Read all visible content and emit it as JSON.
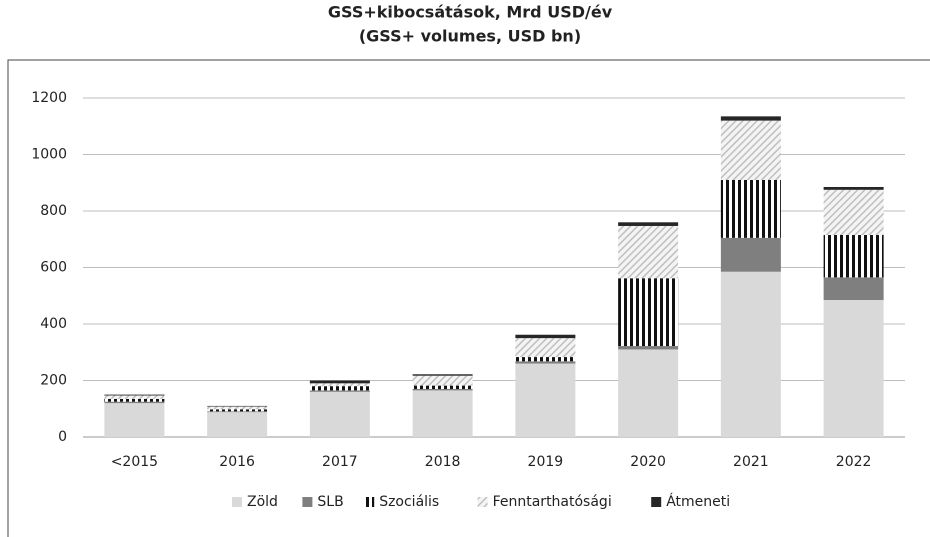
{
  "chart_data": {
    "type": "stacked-bar",
    "title": "GSS+kibocsátások, Mrd USD/év",
    "subtitle": "(GSS+ volumes, USD bn)",
    "categories": [
      "<2015",
      "2016",
      "2017",
      "2018",
      "2019",
      "2020",
      "2021",
      "2022"
    ],
    "series": [
      {
        "name": "Zöld",
        "color": "#d9d9d9",
        "pattern": "solid",
        "values": [
          120,
          88,
          160,
          165,
          260,
          310,
          585,
          485
        ]
      },
      {
        "name": "SLB",
        "color": "#7f7f7f",
        "pattern": "solid",
        "values": [
          5,
          3,
          5,
          5,
          8,
          12,
          120,
          80
        ]
      },
      {
        "name": "Szociális",
        "color": "#111111",
        "pattern": "vertical-stripes",
        "values": [
          10,
          7,
          15,
          12,
          15,
          240,
          205,
          150
        ]
      },
      {
        "name": "Fenntarthatósági",
        "color": "#bfbfbf",
        "pattern": "diagonal-hatch",
        "values": [
          12,
          10,
          10,
          35,
          67,
          185,
          210,
          160
        ]
      },
      {
        "name": "Átmeneti",
        "color": "#262626",
        "pattern": "solid",
        "values": [
          3,
          2,
          10,
          5,
          12,
          13,
          15,
          10
        ]
      }
    ],
    "ylim": [
      0,
      1200
    ],
    "yticks": [
      0,
      200,
      400,
      600,
      800,
      1000,
      1200
    ],
    "grid": true,
    "legend": "bottom"
  }
}
